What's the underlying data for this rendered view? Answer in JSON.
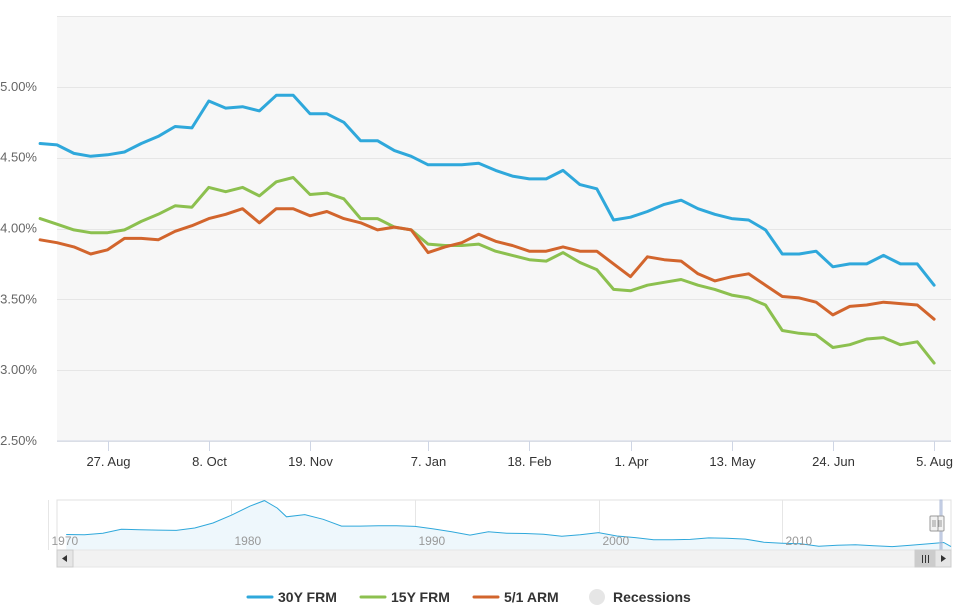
{
  "chart_data": {
    "type": "line",
    "y_tick_labels": [
      "2.50%",
      "3.00%",
      "3.50%",
      "4.00%",
      "4.50%",
      "5.00%"
    ],
    "y_tick_values": [
      2.5,
      3.0,
      3.5,
      4.0,
      4.5,
      5.0
    ],
    "ylim": [
      2.5,
      5.5
    ],
    "x_tick_labels": [
      "27. Aug",
      "8. Oct",
      "19. Nov",
      "7. Jan",
      "18. Feb",
      "1. Apr",
      "13. May",
      "24. Jun",
      "5. Aug"
    ],
    "x_tick_positions": [
      5,
      11,
      17,
      24,
      30,
      36,
      42,
      48,
      54
    ],
    "xlim": [
      2,
      55
    ],
    "grid": true,
    "legend_position": "bottom",
    "series": [
      {
        "name": "30Y FRM",
        "color": "#2fa8db",
        "values": [
          4.6,
          4.59,
          4.53,
          4.51,
          4.52,
          4.54,
          4.6,
          4.65,
          4.72,
          4.71,
          4.9,
          4.85,
          4.86,
          4.83,
          4.94,
          4.94,
          4.81,
          4.81,
          4.75,
          4.62,
          4.62,
          4.55,
          4.51,
          4.45,
          4.45,
          4.45,
          4.46,
          4.41,
          4.37,
          4.35,
          4.35,
          4.41,
          4.31,
          4.28,
          4.06,
          4.08,
          4.12,
          4.17,
          4.2,
          4.14,
          4.1,
          4.07,
          4.06,
          3.99,
          3.82,
          3.82,
          3.84,
          3.73,
          3.75,
          3.75,
          3.81,
          3.75,
          3.75,
          3.6
        ]
      },
      {
        "name": "15Y FRM",
        "color": "#8cc04f",
        "values": [
          4.07,
          4.03,
          3.99,
          3.97,
          3.97,
          3.99,
          4.05,
          4.1,
          4.16,
          4.15,
          4.29,
          4.26,
          4.29,
          4.23,
          4.33,
          4.36,
          4.24,
          4.25,
          4.21,
          4.07,
          4.07,
          4.01,
          3.99,
          3.89,
          3.88,
          3.88,
          3.89,
          3.84,
          3.81,
          3.78,
          3.77,
          3.83,
          3.76,
          3.71,
          3.57,
          3.56,
          3.6,
          3.62,
          3.64,
          3.6,
          3.57,
          3.53,
          3.51,
          3.46,
          3.28,
          3.26,
          3.25,
          3.16,
          3.18,
          3.22,
          3.23,
          3.18,
          3.2,
          3.05
        ]
      },
      {
        "name": "5/1 ARM",
        "color": "#d2652d",
        "values": [
          3.92,
          3.9,
          3.87,
          3.82,
          3.85,
          3.93,
          3.93,
          3.92,
          3.98,
          4.02,
          4.07,
          4.1,
          4.14,
          4.04,
          4.14,
          4.14,
          4.09,
          4.12,
          4.07,
          4.04,
          3.99,
          4.01,
          3.99,
          3.83,
          3.87,
          3.9,
          3.96,
          3.91,
          3.88,
          3.84,
          3.84,
          3.87,
          3.84,
          3.84,
          3.75,
          3.66,
          3.8,
          3.78,
          3.77,
          3.68,
          3.63,
          3.66,
          3.68,
          3.6,
          3.52,
          3.51,
          3.48,
          3.39,
          3.45,
          3.46,
          3.48,
          3.47,
          3.46,
          3.36
        ]
      }
    ],
    "legend": [
      {
        "label": "30Y FRM",
        "color": "#2fa8db",
        "kind": "line"
      },
      {
        "label": "15Y FRM",
        "color": "#8cc04f",
        "kind": "line"
      },
      {
        "label": "5/1 ARM",
        "color": "#d2652d",
        "kind": "line"
      },
      {
        "label": "Recessions",
        "color": "#e6e6e6",
        "kind": "circle"
      }
    ],
    "navigator": {
      "x_tick_labels": [
        "1970",
        "1980",
        "1990",
        "2000",
        "2010"
      ],
      "x_tick_years": [
        1970,
        1980,
        1990,
        2000,
        2010
      ],
      "xlim": [
        1970.5,
        2019.2
      ],
      "selected_range": [
        2018.6,
        2019.2
      ],
      "ylim": [
        2.5,
        18.6
      ],
      "series": [
        [
          1971,
          7.5
        ],
        [
          1972,
          7.4
        ],
        [
          1973,
          7.9
        ],
        [
          1974,
          9.2
        ],
        [
          1975,
          9.0
        ],
        [
          1976,
          8.9
        ],
        [
          1977,
          8.8
        ],
        [
          1978,
          9.6
        ],
        [
          1979,
          11.2
        ],
        [
          1980,
          13.7
        ],
        [
          1981,
          16.6
        ],
        [
          1981.8,
          18.4
        ],
        [
          1982.5,
          16.0
        ],
        [
          1983,
          13.2
        ],
        [
          1984,
          13.9
        ],
        [
          1985,
          12.4
        ],
        [
          1986,
          10.2
        ],
        [
          1987,
          10.2
        ],
        [
          1988,
          10.3
        ],
        [
          1989,
          10.3
        ],
        [
          1990,
          10.1
        ],
        [
          1991,
          9.3
        ],
        [
          1992,
          8.4
        ],
        [
          1993,
          7.3
        ],
        [
          1994,
          8.4
        ],
        [
          1995,
          7.9
        ],
        [
          1996,
          7.8
        ],
        [
          1997,
          7.6
        ],
        [
          1998,
          6.9
        ],
        [
          1999,
          7.4
        ],
        [
          2000,
          8.1
        ],
        [
          2001,
          7.0
        ],
        [
          2002,
          6.5
        ],
        [
          2003,
          5.8
        ],
        [
          2004,
          5.8
        ],
        [
          2005,
          5.9
        ],
        [
          2006,
          6.4
        ],
        [
          2007,
          6.3
        ],
        [
          2008,
          6.0
        ],
        [
          2009,
          5.0
        ],
        [
          2010,
          4.7
        ],
        [
          2011,
          4.5
        ],
        [
          2012,
          3.7
        ],
        [
          2013,
          4.0
        ],
        [
          2014,
          4.2
        ],
        [
          2015,
          3.9
        ],
        [
          2016,
          3.6
        ],
        [
          2017,
          4.0
        ],
        [
          2018,
          4.5
        ],
        [
          2018.8,
          4.9
        ],
        [
          2019.2,
          3.6
        ]
      ]
    }
  }
}
